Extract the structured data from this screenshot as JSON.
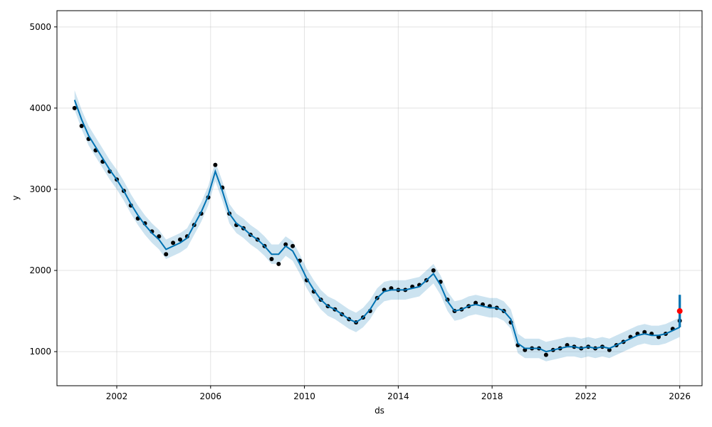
{
  "chart_data": {
    "type": "scatter",
    "xlabel": "ds",
    "ylabel": "y",
    "xlim": [
      1999.45,
      2026.95
    ],
    "ylim": [
      580,
      5200
    ],
    "x_ticks": [
      2002,
      2006,
      2010,
      2014,
      2018,
      2022,
      2026
    ],
    "x_tick_labels": [
      "2002",
      "2006",
      "2010",
      "2014",
      "2018",
      "2022",
      "2026"
    ],
    "y_ticks": [
      1000,
      2000,
      3000,
      4000,
      5000
    ],
    "y_tick_labels": [
      "1000",
      "2000",
      "3000",
      "4000",
      "5000"
    ],
    "grid": true,
    "colors": {
      "observed": "#000000",
      "forecast": "#0072B2",
      "uncertainty": "#0072B2",
      "highlight": "#ff0000"
    },
    "series": [
      {
        "kind": "observed-points",
        "x": [
          2000.2,
          2000.5,
          2000.8,
          2001.1,
          2001.4,
          2001.7,
          2002.0,
          2002.3,
          2002.6,
          2002.9,
          2003.2,
          2003.5,
          2003.8,
          2004.1,
          2004.4,
          2004.7,
          2005.0,
          2005.3,
          2005.6,
          2005.9,
          2006.2,
          2006.5,
          2006.8,
          2007.1,
          2007.4,
          2007.7,
          2008.0,
          2008.3,
          2008.6,
          2008.9,
          2009.2,
          2009.5,
          2009.8,
          2010.1,
          2010.4,
          2010.7,
          2011.0,
          2011.3,
          2011.6,
          2011.9,
          2012.2,
          2012.5,
          2012.8,
          2013.1,
          2013.4,
          2013.7,
          2014.0,
          2014.3,
          2014.6,
          2014.9,
          2015.2,
          2015.5,
          2015.8,
          2016.1,
          2016.4,
          2016.7,
          2017.0,
          2017.3,
          2017.6,
          2017.9,
          2018.2,
          2018.5,
          2018.8,
          2019.1,
          2019.4,
          2019.7,
          2020.0,
          2020.3,
          2020.6,
          2020.9,
          2021.2,
          2021.5,
          2021.8,
          2022.1,
          2022.4,
          2022.7,
          2023.0,
          2023.3,
          2023.6,
          2023.9,
          2024.2,
          2024.5,
          2024.8,
          2025.1,
          2025.4,
          2025.7,
          2026.0
        ],
        "y": [
          4000,
          3780,
          3620,
          3480,
          3340,
          3220,
          3120,
          2980,
          2800,
          2640,
          2580,
          2480,
          2420,
          2200,
          2340,
          2380,
          2420,
          2560,
          2700,
          2900,
          3300,
          3020,
          2700,
          2560,
          2520,
          2440,
          2380,
          2300,
          2140,
          2080,
          2320,
          2300,
          2120,
          1880,
          1740,
          1640,
          1560,
          1520,
          1460,
          1400,
          1360,
          1420,
          1500,
          1660,
          1760,
          1780,
          1760,
          1760,
          1800,
          1820,
          1880,
          2000,
          1860,
          1640,
          1500,
          1520,
          1560,
          1600,
          1580,
          1560,
          1540,
          1500,
          1360,
          1080,
          1020,
          1040,
          1040,
          960,
          1020,
          1040,
          1080,
          1060,
          1040,
          1060,
          1040,
          1060,
          1020,
          1080,
          1120,
          1180,
          1220,
          1240,
          1220,
          1180,
          1220,
          1280,
          1380
        ]
      },
      {
        "kind": "forecast-line",
        "x": [
          2000.2,
          2000.5,
          2000.8,
          2001.1,
          2001.4,
          2001.7,
          2002.0,
          2002.3,
          2002.6,
          2002.9,
          2003.2,
          2003.5,
          2003.8,
          2004.1,
          2004.4,
          2004.7,
          2005.0,
          2005.3,
          2005.6,
          2005.9,
          2006.2,
          2006.5,
          2006.8,
          2007.1,
          2007.4,
          2007.7,
          2008.0,
          2008.3,
          2008.6,
          2008.9,
          2009.2,
          2009.5,
          2009.8,
          2010.1,
          2010.4,
          2010.7,
          2011.0,
          2011.3,
          2011.6,
          2011.9,
          2012.2,
          2012.5,
          2012.8,
          2013.1,
          2013.4,
          2013.7,
          2014.0,
          2014.3,
          2014.6,
          2014.9,
          2015.2,
          2015.5,
          2015.8,
          2016.1,
          2016.4,
          2016.7,
          2017.0,
          2017.3,
          2017.6,
          2017.9,
          2018.2,
          2018.5,
          2018.8,
          2019.1,
          2019.4,
          2019.7,
          2020.0,
          2020.3,
          2020.6,
          2020.9,
          2021.2,
          2021.5,
          2021.8,
          2022.1,
          2022.4,
          2022.7,
          2023.0,
          2023.3,
          2023.6,
          2023.9,
          2024.2,
          2024.5,
          2024.8,
          2025.1,
          2025.4,
          2025.7,
          2026.0
        ],
        "y": [
          4100,
          3860,
          3660,
          3520,
          3380,
          3240,
          3120,
          2980,
          2820,
          2680,
          2560,
          2460,
          2380,
          2260,
          2300,
          2340,
          2400,
          2560,
          2720,
          2920,
          3220,
          2980,
          2700,
          2580,
          2520,
          2440,
          2380,
          2300,
          2200,
          2200,
          2300,
          2240,
          2080,
          1900,
          1760,
          1640,
          1560,
          1520,
          1460,
          1400,
          1360,
          1420,
          1520,
          1660,
          1740,
          1760,
          1760,
          1760,
          1780,
          1800,
          1880,
          1960,
          1820,
          1620,
          1500,
          1520,
          1560,
          1580,
          1560,
          1540,
          1540,
          1500,
          1400,
          1100,
          1040,
          1040,
          1040,
          1000,
          1020,
          1040,
          1060,
          1060,
          1040,
          1060,
          1040,
          1060,
          1040,
          1080,
          1120,
          1160,
          1200,
          1220,
          1200,
          1200,
          1220,
          1260,
          1300
        ]
      },
      {
        "kind": "uncertainty-band",
        "half_width": 120
      },
      {
        "kind": "forecast-segment",
        "x": [
          2025.95,
          2026.0,
          2026.05
        ],
        "lower": [
          1300,
          1300,
          1300
        ],
        "upper": [
          1700,
          1700,
          1700
        ]
      },
      {
        "kind": "highlight-point",
        "x": 2026.0,
        "y": 1500
      }
    ]
  }
}
